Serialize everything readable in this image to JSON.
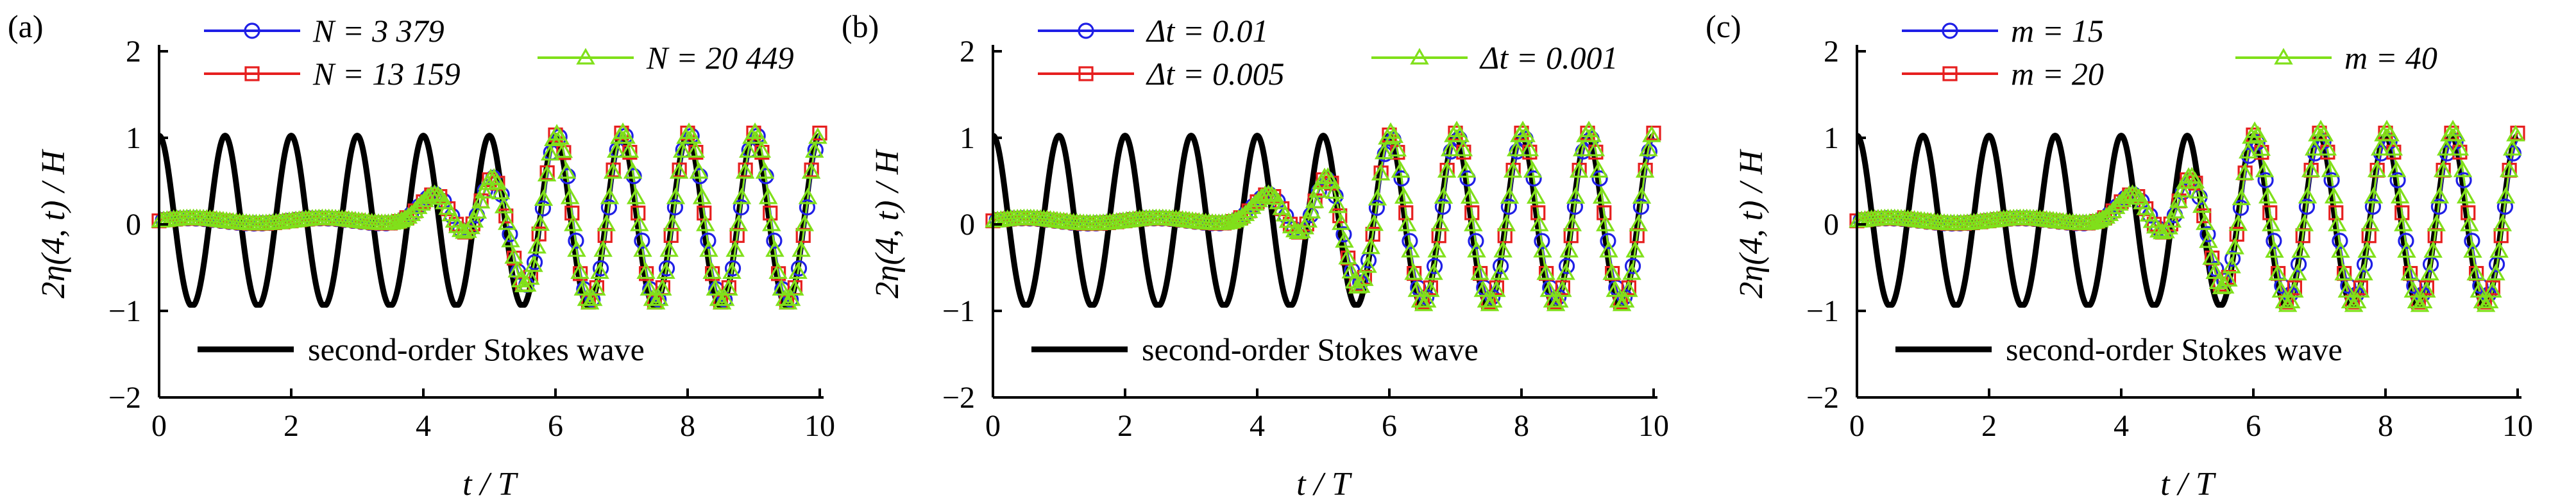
{
  "chart_data": [
    {
      "type": "line",
      "panel_label": "(a)",
      "xlabel": "t / T",
      "ylabel": "2η(4, t) / H",
      "xlim": [
        0,
        10
      ],
      "ylim": [
        -2,
        2
      ],
      "xticks": [
        0,
        2,
        4,
        6,
        8,
        10
      ],
      "yticks": [
        -2,
        -1,
        0,
        1,
        2
      ],
      "grid": false,
      "legend_reference": "second-order Stokes wave",
      "series": [
        {
          "name": "N = 3 379",
          "color": "#1f1fe6",
          "marker": "circle",
          "phase": 0.16,
          "amp": 0.98,
          "ramp_start": 3.9
        },
        {
          "name": "N = 13 159",
          "color": "#e61f1f",
          "marker": "square",
          "phase": 0.02,
          "amp": 1.0,
          "ramp_start": 3.9
        },
        {
          "name": "N = 20 449",
          "color": "#80e01a",
          "marker": "triangle",
          "phase": 0.0,
          "amp": 1.0,
          "ramp_start": 3.9
        },
        {
          "name": "second-order Stokes wave",
          "color": "#000000",
          "marker": "none",
          "reference": true,
          "amp": 1.0,
          "trough": -0.93
        }
      ]
    },
    {
      "type": "line",
      "panel_label": "(b)",
      "xlabel": "t / T",
      "ylabel": "2η(4, t) / H",
      "xlim": [
        0,
        10
      ],
      "ylim": [
        -2,
        2
      ],
      "xticks": [
        0,
        2,
        4,
        6,
        8,
        10
      ],
      "yticks": [
        -2,
        -1,
        0,
        1,
        2
      ],
      "grid": false,
      "legend_reference": "second-order Stokes wave",
      "series": [
        {
          "name": "Δt = 0.01",
          "color": "#1f1fe6",
          "marker": "circle",
          "phase": 0.12,
          "amp": 0.95,
          "ramp_start": 3.9
        },
        {
          "name": "Δt = 0.005",
          "color": "#e61f1f",
          "marker": "square",
          "phase": 0.03,
          "amp": 1.0,
          "ramp_start": 3.9
        },
        {
          "name": "Δt = 0.001",
          "color": "#80e01a",
          "marker": "triangle",
          "phase": 0.0,
          "amp": 1.02,
          "ramp_start": 3.9
        },
        {
          "name": "second-order Stokes wave",
          "color": "#000000",
          "marker": "none",
          "reference": true,
          "amp": 1.0,
          "trough": -0.93
        }
      ]
    },
    {
      "type": "line",
      "panel_label": "(c)",
      "xlabel": "t / T",
      "ylabel": "2η(4, t) / H",
      "xlim": [
        0,
        10
      ],
      "ylim": [
        -2,
        2
      ],
      "xticks": [
        0,
        2,
        4,
        6,
        8,
        10
      ],
      "yticks": [
        -2,
        -1,
        0,
        1,
        2
      ],
      "grid": false,
      "legend_reference": "second-order Stokes wave",
      "series": [
        {
          "name": "m = 15",
          "color": "#1f1fe6",
          "marker": "circle",
          "phase": 0.1,
          "amp": 0.92,
          "ramp_start": 3.9
        },
        {
          "name": "m = 20",
          "color": "#e61f1f",
          "marker": "square",
          "phase": 0.03,
          "amp": 1.0,
          "ramp_start": 3.9
        },
        {
          "name": "m = 40",
          "color": "#80e01a",
          "marker": "triangle",
          "phase": 0.0,
          "amp": 1.03,
          "ramp_start": 3.9
        },
        {
          "name": "second-order Stokes wave",
          "color": "#000000",
          "marker": "none",
          "reference": true,
          "amp": 1.0,
          "trough": -0.93
        }
      ]
    }
  ]
}
